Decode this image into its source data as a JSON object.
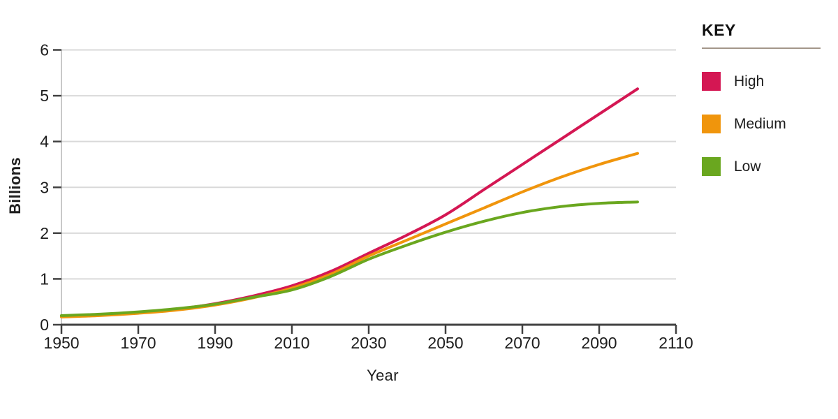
{
  "chart_data": {
    "type": "line",
    "title": "",
    "xlabel": "Year",
    "ylabel": "Billions",
    "xlim": [
      1950,
      2110
    ],
    "ylim": [
      0,
      6
    ],
    "x_ticks": [
      1950,
      1970,
      1990,
      2010,
      2030,
      2050,
      2070,
      2090,
      2110
    ],
    "y_ticks": [
      0,
      1,
      2,
      3,
      4,
      5,
      6
    ],
    "grid": "horizontal",
    "legend_title": "KEY",
    "legend_position": "right",
    "x": [
      1950,
      1960,
      1970,
      1980,
      1990,
      2000,
      2010,
      2020,
      2030,
      2040,
      2050,
      2060,
      2070,
      2080,
      2090,
      2100
    ],
    "series": [
      {
        "name": "High",
        "color": "#d41753",
        "values": [
          0.18,
          0.21,
          0.26,
          0.34,
          0.46,
          0.63,
          0.85,
          1.16,
          1.56,
          1.96,
          2.4,
          2.95,
          3.5,
          4.05,
          4.6,
          5.15
        ]
      },
      {
        "name": "Medium",
        "color": "#f0950c",
        "values": [
          0.17,
          0.2,
          0.25,
          0.32,
          0.43,
          0.59,
          0.8,
          1.1,
          1.5,
          1.85,
          2.2,
          2.55,
          2.9,
          3.22,
          3.5,
          3.74
        ]
      },
      {
        "name": "Low",
        "color": "#6aa71f",
        "values": [
          0.2,
          0.23,
          0.28,
          0.35,
          0.45,
          0.6,
          0.76,
          1.05,
          1.43,
          1.74,
          2.02,
          2.26,
          2.45,
          2.58,
          2.65,
          2.68
        ]
      }
    ],
    "colors": {
      "axis": "#414141",
      "gridline": "#d9d9d9",
      "y_axis_line": "#c9c9c9",
      "text": "#1d1d1d",
      "key_rule": "#a3968a"
    }
  }
}
